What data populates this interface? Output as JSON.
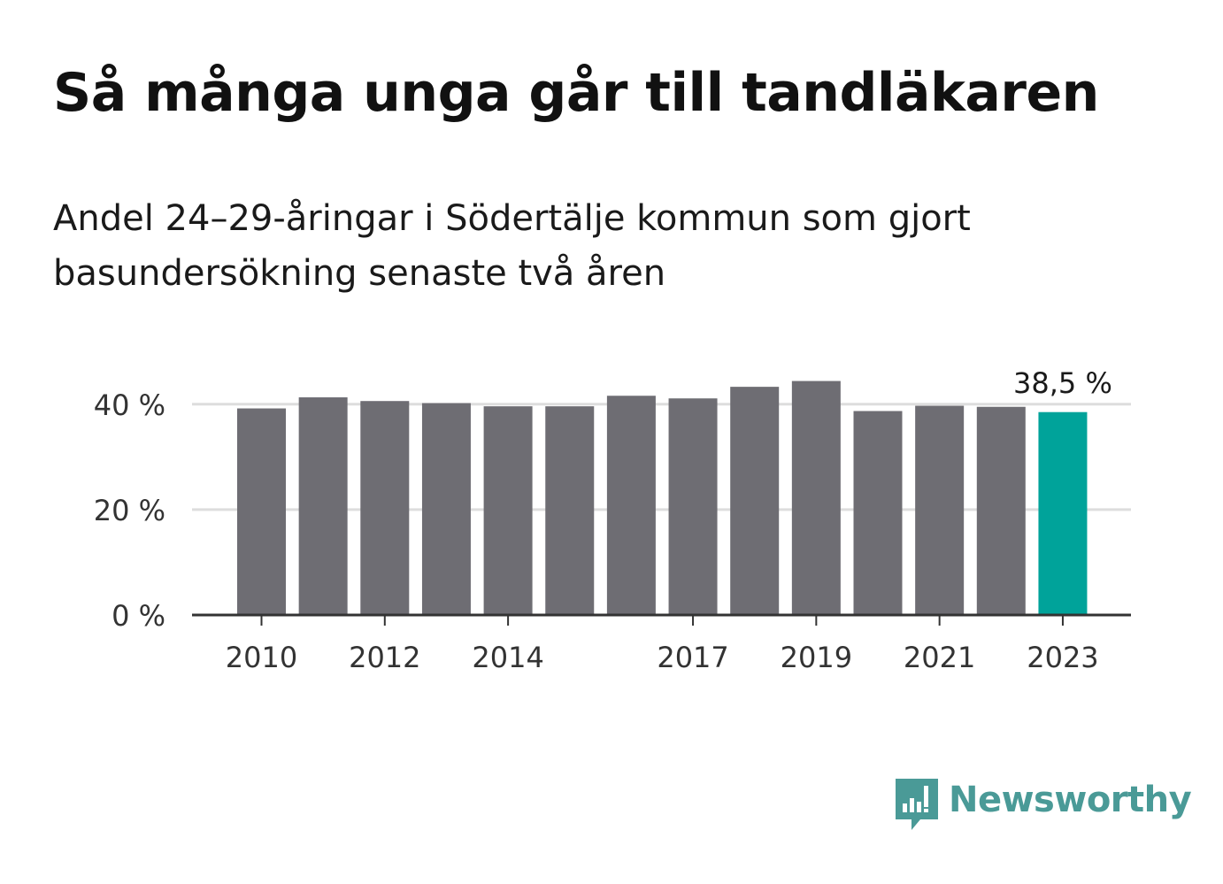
{
  "header": {
    "title": "Så många unga går till tandläkaren",
    "subtitle": "Andel 24–29-åringar i Södertälje kommun som gjort basundersökning senaste två åren"
  },
  "brand": {
    "name": "Newsworthy",
    "color": "#4a9a97",
    "icon": "bar-chart-speech-bubble-icon"
  },
  "colors": {
    "bar": "#6e6d73",
    "highlight": "#00a39a",
    "grid": "#dddddd",
    "axis": "#333333"
  },
  "chart_data": {
    "type": "bar",
    "title": "Så många unga går till tandläkaren",
    "subtitle": "Andel 24–29-åringar i Södertälje kommun som gjort basundersökning senaste två åren",
    "xlabel": "",
    "ylabel": "",
    "categories": [
      "2010",
      "2011",
      "2012",
      "2013",
      "2014",
      "2015",
      "2016",
      "2017",
      "2018",
      "2019",
      "2020",
      "2021",
      "2022",
      "2023"
    ],
    "values": [
      39.2,
      41.3,
      40.6,
      40.2,
      39.6,
      39.6,
      41.6,
      41.1,
      43.3,
      44.4,
      38.7,
      39.7,
      39.5,
      38.5
    ],
    "highlight_index": 13,
    "highlight_label": "38,5 %",
    "ylim": [
      0,
      45
    ],
    "yticks": [
      {
        "value": 0,
        "label": "0 %"
      },
      {
        "value": 20,
        "label": "20 %"
      },
      {
        "value": 40,
        "label": "40 %"
      }
    ],
    "xtick_labels": [
      {
        "index": 0,
        "label": "2010"
      },
      {
        "index": 2,
        "label": "2012"
      },
      {
        "index": 4,
        "label": "2014"
      },
      {
        "index": 7,
        "label": "2017"
      },
      {
        "index": 9,
        "label": "2019"
      },
      {
        "index": 11,
        "label": "2021"
      },
      {
        "index": 13,
        "label": "2023"
      }
    ],
    "grid": true,
    "legend": "none"
  }
}
